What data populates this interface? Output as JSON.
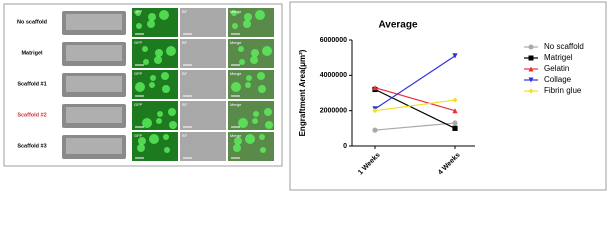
{
  "figure": {
    "columns": [
      "GFP",
      "BF",
      "Merge"
    ],
    "rows": [
      {
        "label": "No scaffold",
        "color": "#000000"
      },
      {
        "label": "Matrigel",
        "color": "#000000"
      },
      {
        "label": "Scaffold #1",
        "color": "#000000"
      },
      {
        "label": "Scaffold #2",
        "color": "#d03030"
      },
      {
        "label": "Scaffold #3",
        "color": "#000000"
      }
    ]
  },
  "chart_data": {
    "type": "line",
    "title": "Average",
    "y_label": "Engraftment Area(μm²)",
    "categories": [
      "1 Weeks",
      "4 Weeks"
    ],
    "ylim": [
      0,
      6000000
    ],
    "yticks": [
      0,
      2000000,
      4000000,
      6000000
    ],
    "legend": "right",
    "series": [
      {
        "name": "No scaffold",
        "color": "#aaaaaa",
        "marker": "circle",
        "values": [
          900000,
          1300000
        ]
      },
      {
        "name": "Matrigel",
        "color": "#000000",
        "marker": "square",
        "values": [
          3200000,
          1000000
        ]
      },
      {
        "name": "Gelatin",
        "color": "#e8303a",
        "marker": "triangle-up",
        "values": [
          3300000,
          2000000
        ]
      },
      {
        "name": "Collage",
        "color": "#3030e0",
        "marker": "triangle-down",
        "values": [
          2100000,
          5100000
        ]
      },
      {
        "name": "Fibrin glue",
        "color": "#f5e020",
        "marker": "diamond",
        "values": [
          2000000,
          2600000
        ]
      }
    ]
  }
}
